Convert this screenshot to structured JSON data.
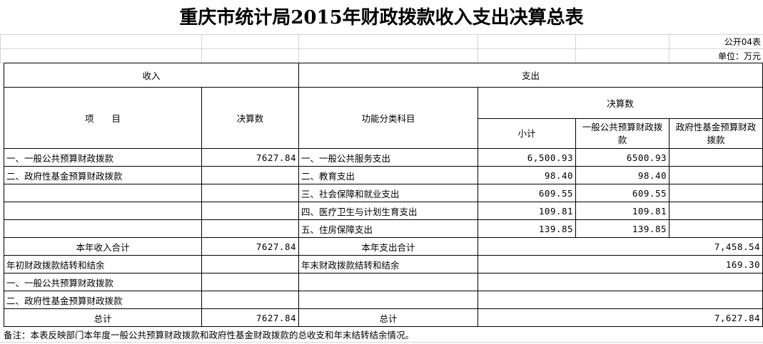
{
  "title": "重庆市统计局2015年财政拨款收入支出决算总表",
  "form_no": "公开04表",
  "unit": "单位：万元",
  "headers": {
    "income": "收入",
    "expense": "支出",
    "item": "项　　目",
    "income_amount": "决算数",
    "func_class": "功能分类科目",
    "expense_amount": "决算数",
    "subtotal": "小计",
    "general_budget": "一般公共预算财政拨款",
    "gov_fund": "政府性基金预算财政拨款"
  },
  "rows": [
    {
      "income_item": "一、一般公共预算财政拨款",
      "income_amount": "7627.84",
      "expense_item": "一、一般公共服务支出",
      "subtotal": "6,500.93",
      "general": "6500.93",
      "fund": ""
    },
    {
      "income_item": "二、政府性基金预算财政拨款",
      "income_amount": "",
      "expense_item": "二、教育支出",
      "subtotal": "98.40",
      "general": "98.40",
      "fund": ""
    },
    {
      "income_item": "",
      "income_amount": "",
      "expense_item": "三、社会保障和就业支出",
      "subtotal": "609.55",
      "general": "609.55",
      "fund": ""
    },
    {
      "income_item": "",
      "income_amount": "",
      "expense_item": "四、医疗卫生与计划生育支出",
      "subtotal": "109.81",
      "general": "109.81",
      "fund": ""
    },
    {
      "income_item": "",
      "income_amount": "",
      "expense_item": "五、住房保障支出",
      "subtotal": "139.85",
      "general": "139.85",
      "fund": ""
    }
  ],
  "summary": [
    {
      "income_item": "本年收入合计",
      "income_amount": "7627.84",
      "expense_item": "本年支出合计",
      "expense_amount": "7,458.54"
    },
    {
      "income_item": "年初财政拨款结转和结余",
      "income_amount": "",
      "expense_item": "年末财政拨款结转和结余",
      "expense_amount": "169.30"
    },
    {
      "income_item": "一、一般公共预算财政拨款",
      "income_amount": "",
      "expense_item": "",
      "expense_amount": ""
    },
    {
      "income_item": "二、政府性基金预算财政拨款",
      "income_amount": "",
      "expense_item": "",
      "expense_amount": ""
    },
    {
      "income_item": "总计",
      "income_amount": "7627.84",
      "expense_item": "总计",
      "expense_amount": "7,627.84"
    }
  ],
  "note": "备注：本表反映部门本年度一般公共预算财政拨款和政府性基金财政拨款的总收支和年末结转结余情况。"
}
